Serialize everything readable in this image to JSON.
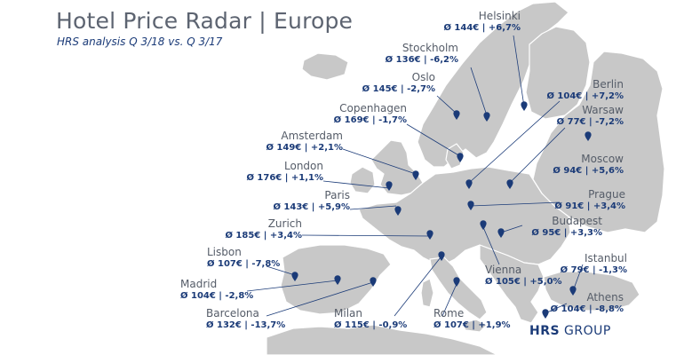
{
  "title": "Hotel Price Radar | Europe",
  "subtitle": "HRS analysis Q 3/18 vs. Q 3/17",
  "logo": {
    "brand": "HRS",
    "suffix": "GROUP"
  },
  "colors": {
    "land": "#c8c8c8",
    "land_dark": "#a8a8a8",
    "coast": "#ffffff",
    "accent": "#1b3b78",
    "text_gray": "#555c68",
    "title_gray": "#5d6471"
  },
  "cities": [
    {
      "id": "helsinki",
      "name": "Helsinki",
      "price": "Ø 144€ | +6,7%"
    },
    {
      "id": "stockholm",
      "name": "Stockholm",
      "price": "Ø 136€ | -6,2%"
    },
    {
      "id": "oslo",
      "name": "Oslo",
      "price": "Ø 145€ | -2,7%"
    },
    {
      "id": "copenhagen",
      "name": "Copenhagen",
      "price": "Ø 169€ | -1,7%"
    },
    {
      "id": "berlin",
      "name": "Berlin",
      "price": "Ø 104€ | +7,2%"
    },
    {
      "id": "warsaw",
      "name": "Warsaw",
      "price": "Ø 77€ | -7,2%"
    },
    {
      "id": "moscow",
      "name": "Moscow",
      "price": "Ø 94€ | +5,6%"
    },
    {
      "id": "amsterdam",
      "name": "Amsterdam",
      "price": "Ø 149€ | +2,1%"
    },
    {
      "id": "london",
      "name": "London",
      "price": "Ø 176€ | +1,1%"
    },
    {
      "id": "paris",
      "name": "Paris",
      "price": "Ø 143€ | +5,9%"
    },
    {
      "id": "zurich",
      "name": "Zurich",
      "price": "Ø 185€ | +3,4%"
    },
    {
      "id": "prague",
      "name": "Prague",
      "price": "Ø 91€ | +3,4%"
    },
    {
      "id": "budapest",
      "name": "Budapest",
      "price": "Ø 95€ | +3,3%"
    },
    {
      "id": "vienna",
      "name": "Vienna",
      "price": "Ø 105€ | +5,0%"
    },
    {
      "id": "lisbon",
      "name": "Lisbon",
      "price": "Ø 107€ | -7,8%"
    },
    {
      "id": "madrid",
      "name": "Madrid",
      "price": "Ø 104€ | -2,8%"
    },
    {
      "id": "barcelona",
      "name": "Barcelona",
      "price": "Ø 132€ | -13,7%"
    },
    {
      "id": "milan",
      "name": "Milan",
      "price": "Ø 115€ | -0,9%"
    },
    {
      "id": "rome",
      "name": "Rome",
      "price": "Ø 107€ | +1,9%"
    },
    {
      "id": "istanbul",
      "name": "Istanbul",
      "price": "Ø 79€ | -1,3%"
    },
    {
      "id": "athens",
      "name": "Athens",
      "price": "Ø 104€ | -8,8%"
    }
  ]
}
